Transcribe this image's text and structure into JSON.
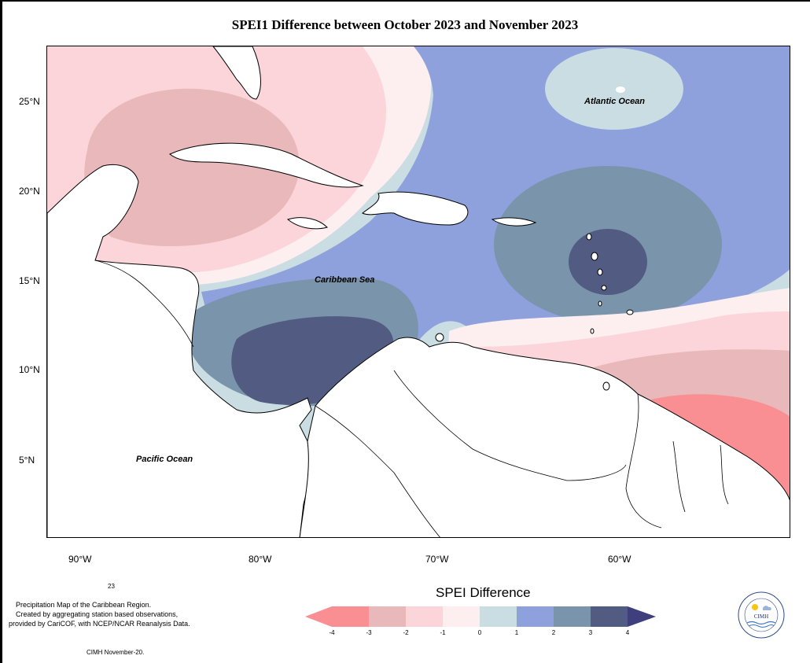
{
  "title": "SPEI1 Difference between October 2023 and November 2023",
  "lat_ticks": [
    "25°N",
    "20°N",
    "15°N",
    "10°N",
    "5°N"
  ],
  "lon_ticks": [
    "90°W",
    "80°W",
    "70°W",
    "60°W"
  ],
  "labels": {
    "atlantic": "Atlantic Ocean",
    "caribbean": "Caribbean Sea",
    "pacific": "Pacific Ocean"
  },
  "footer": {
    "number": "23",
    "line1": "Precipitation Map of the Caribbean Region.",
    "line2": "Created by aggregating station based observations,",
    "line3": "provided by CariCOF, with NCEP/NCAR Reanalysis Data.",
    "credit": "CIMH November-20."
  },
  "legend": {
    "title": "SPEI Difference",
    "ticks": [
      "-4",
      "-3",
      "-2",
      "-1",
      "0",
      "1",
      "2",
      "3",
      "4"
    ],
    "colors": [
      "#f98f93",
      "#e9b8ba",
      "#fbd5d9",
      "#fdeef0",
      "#c9dde2",
      "#8ea1dc",
      "#7a95ab",
      "#525b82"
    ],
    "arrow_low": "#f98f93",
    "arrow_high": "#3f3f7d"
  },
  "logo": {
    "name": "CIMH",
    "ring_text": "Caribbean Institute for Meteorology and Hydrology"
  }
}
